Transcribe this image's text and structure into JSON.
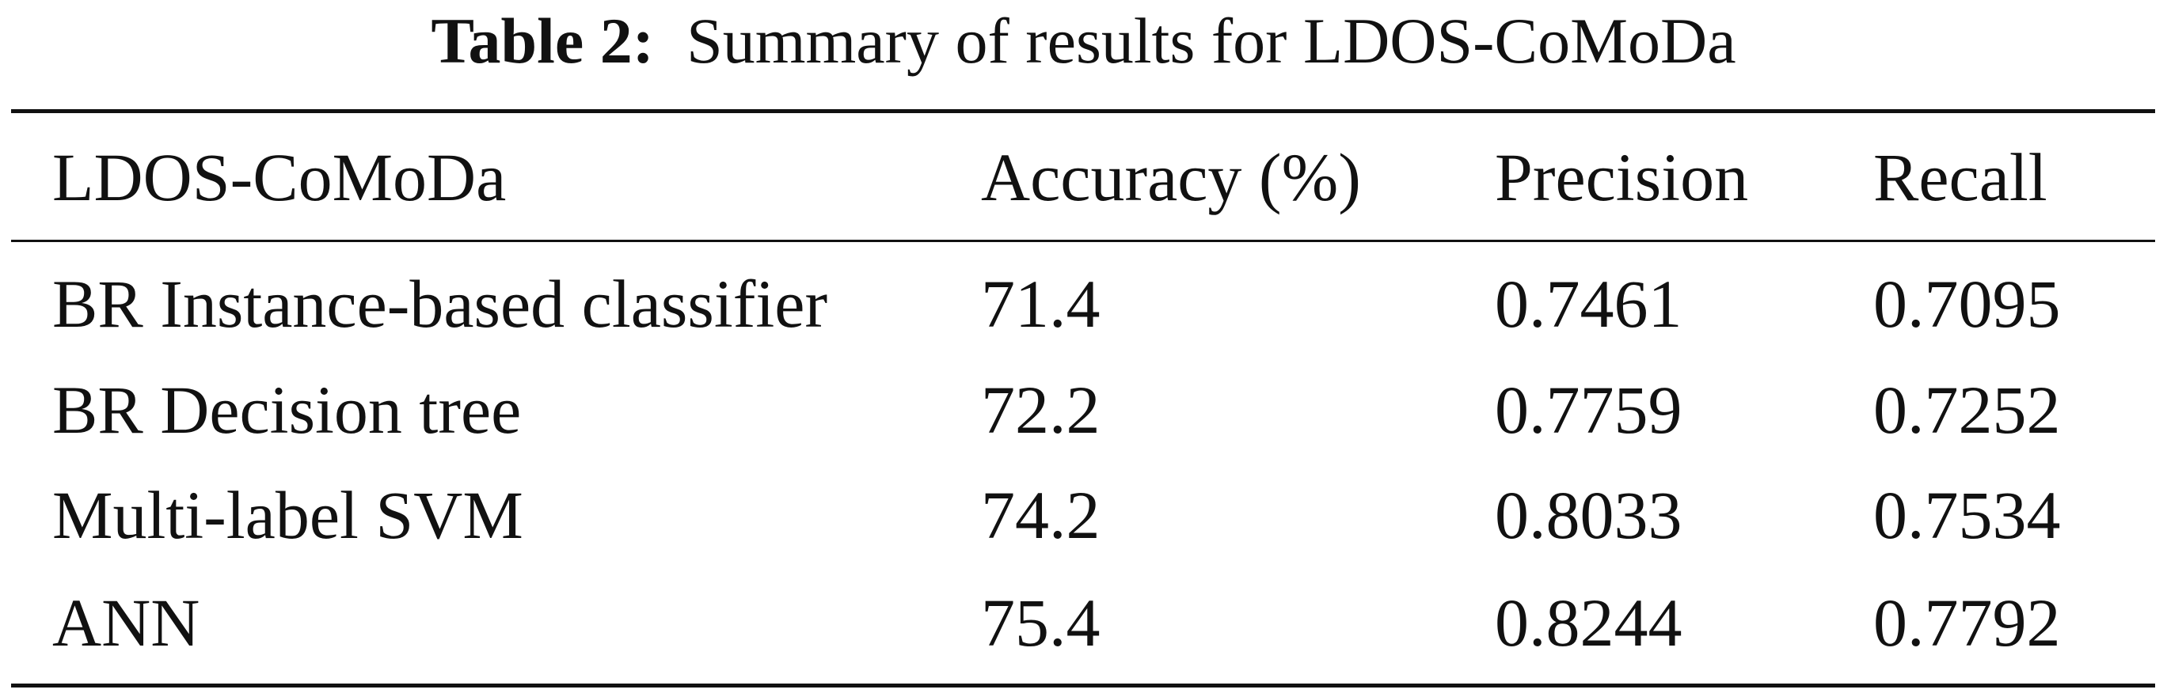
{
  "caption": {
    "label": "Table 2:",
    "text": "Summary of results for LDOS-CoMoDa"
  },
  "table": {
    "header": [
      "LDOS-CoMoDa",
      "Accuracy (%)",
      "Precision",
      "Recall"
    ],
    "rows": [
      [
        "BR Instance-based classifier",
        "71.4",
        "0.7461",
        "0.7095"
      ],
      [
        "BR Decision tree",
        "72.2",
        "0.7759",
        "0.7252"
      ],
      [
        "Multi-label SVM",
        "74.2",
        "0.8033",
        "0.7534"
      ],
      [
        "ANN",
        "75.4",
        "0.8244",
        "0.7792"
      ]
    ]
  }
}
